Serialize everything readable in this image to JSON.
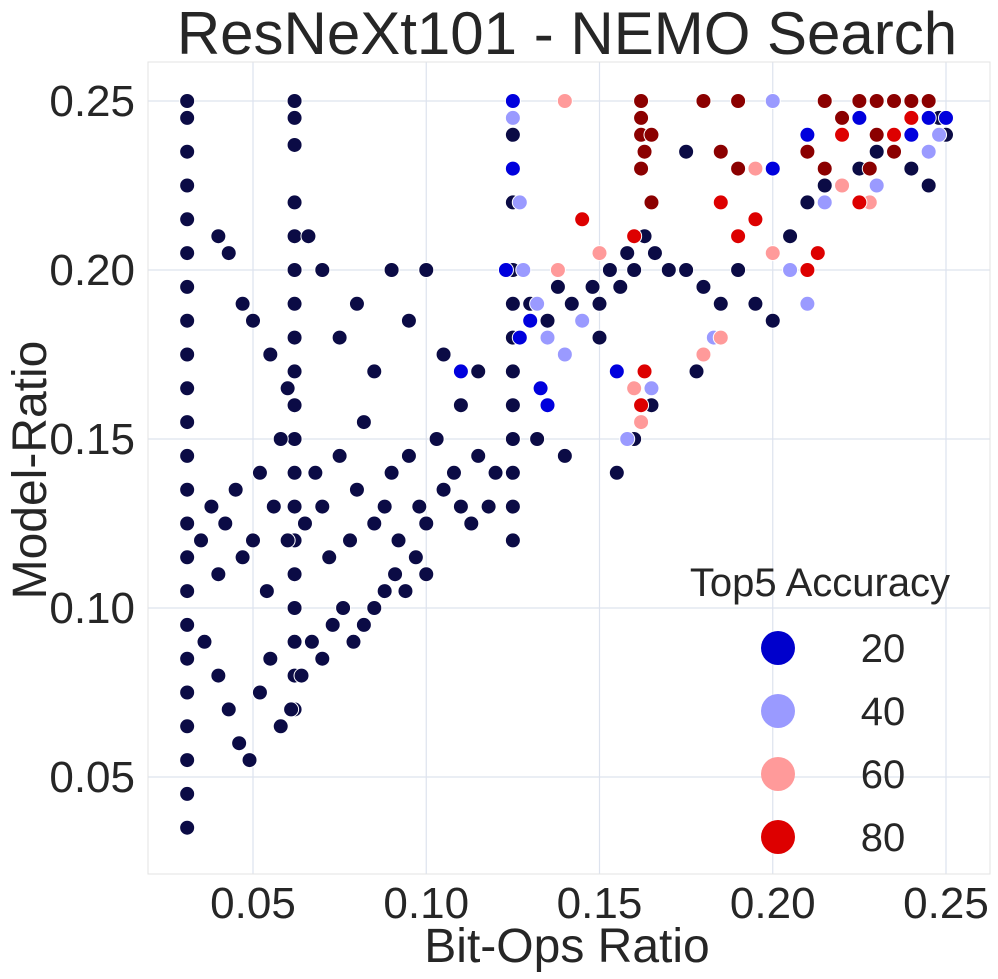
{
  "chart_data": {
    "type": "scatter",
    "title": "ResNeXt101 - NEMO Search",
    "xlabel": "Bit-Ops Ratio",
    "ylabel": "Model-Ratio",
    "xlim": [
      0.02,
      0.26
    ],
    "ylim": [
      0.02,
      0.26
    ],
    "xticks": [
      "0.05",
      "0.10",
      "0.15",
      "0.20",
      "0.25"
    ],
    "yticks": [
      "0.05",
      "0.10",
      "0.15",
      "0.20",
      "0.25"
    ],
    "grid": true,
    "legend": {
      "title": "Top5 Accuracy",
      "placement": "bottom-right",
      "entries": [
        {
          "label": "20",
          "color": "#0000cc"
        },
        {
          "label": "40",
          "color": "#9a9aff"
        },
        {
          "label": "60",
          "color": "#ff9a9a"
        },
        {
          "label": "80",
          "color": "#dd0000"
        }
      ]
    },
    "colormap": "seismic (dark navy = low accuracy, dark red = high accuracy)",
    "series": [
      {
        "color": "#0b0b45",
        "points": [
          [
            0.031,
            0.035
          ],
          [
            0.031,
            0.045
          ],
          [
            0.031,
            0.055
          ],
          [
            0.031,
            0.065
          ],
          [
            0.031,
            0.075
          ],
          [
            0.031,
            0.085
          ],
          [
            0.031,
            0.095
          ],
          [
            0.031,
            0.105
          ],
          [
            0.031,
            0.115
          ],
          [
            0.031,
            0.125
          ],
          [
            0.031,
            0.135
          ],
          [
            0.031,
            0.145
          ],
          [
            0.031,
            0.155
          ],
          [
            0.031,
            0.165
          ],
          [
            0.031,
            0.175
          ],
          [
            0.031,
            0.185
          ],
          [
            0.031,
            0.195
          ],
          [
            0.031,
            0.205
          ],
          [
            0.031,
            0.215
          ],
          [
            0.031,
            0.225
          ],
          [
            0.031,
            0.235
          ],
          [
            0.031,
            0.245
          ],
          [
            0.031,
            0.25
          ],
          [
            0.062,
            0.25
          ],
          [
            0.062,
            0.245
          ],
          [
            0.062,
            0.237
          ],
          [
            0.062,
            0.22
          ],
          [
            0.062,
            0.21
          ],
          [
            0.062,
            0.2
          ],
          [
            0.062,
            0.19
          ],
          [
            0.062,
            0.18
          ],
          [
            0.062,
            0.17
          ],
          [
            0.062,
            0.16
          ],
          [
            0.062,
            0.15
          ],
          [
            0.062,
            0.14
          ],
          [
            0.062,
            0.13
          ],
          [
            0.062,
            0.12
          ],
          [
            0.062,
            0.11
          ],
          [
            0.062,
            0.1
          ],
          [
            0.062,
            0.09
          ],
          [
            0.062,
            0.08
          ],
          [
            0.062,
            0.07
          ],
          [
            0.125,
            0.25
          ],
          [
            0.125,
            0.24
          ],
          [
            0.125,
            0.23
          ],
          [
            0.125,
            0.22
          ],
          [
            0.125,
            0.2
          ],
          [
            0.125,
            0.19
          ],
          [
            0.125,
            0.18
          ],
          [
            0.125,
            0.17
          ],
          [
            0.125,
            0.16
          ],
          [
            0.125,
            0.15
          ],
          [
            0.125,
            0.14
          ],
          [
            0.125,
            0.13
          ],
          [
            0.125,
            0.12
          ],
          [
            0.035,
            0.12
          ],
          [
            0.038,
            0.13
          ],
          [
            0.04,
            0.11
          ],
          [
            0.042,
            0.125
          ],
          [
            0.045,
            0.135
          ],
          [
            0.047,
            0.115
          ],
          [
            0.05,
            0.12
          ],
          [
            0.052,
            0.14
          ],
          [
            0.054,
            0.105
          ],
          [
            0.056,
            0.13
          ],
          [
            0.058,
            0.15
          ],
          [
            0.06,
            0.12
          ],
          [
            0.065,
            0.125
          ],
          [
            0.068,
            0.14
          ],
          [
            0.07,
            0.13
          ],
          [
            0.072,
            0.115
          ],
          [
            0.075,
            0.145
          ],
          [
            0.078,
            0.12
          ],
          [
            0.08,
            0.135
          ],
          [
            0.082,
            0.155
          ],
          [
            0.085,
            0.125
          ],
          [
            0.088,
            0.13
          ],
          [
            0.09,
            0.14
          ],
          [
            0.092,
            0.12
          ],
          [
            0.095,
            0.145
          ],
          [
            0.098,
            0.13
          ],
          [
            0.1,
            0.125
          ],
          [
            0.103,
            0.15
          ],
          [
            0.105,
            0.135
          ],
          [
            0.108,
            0.14
          ],
          [
            0.11,
            0.13
          ],
          [
            0.113,
            0.125
          ],
          [
            0.115,
            0.145
          ],
          [
            0.118,
            0.13
          ],
          [
            0.12,
            0.14
          ],
          [
            0.036,
            0.09
          ],
          [
            0.04,
            0.08
          ],
          [
            0.043,
            0.07
          ],
          [
            0.046,
            0.06
          ],
          [
            0.049,
            0.055
          ],
          [
            0.052,
            0.075
          ],
          [
            0.055,
            0.085
          ],
          [
            0.058,
            0.065
          ],
          [
            0.061,
            0.07
          ],
          [
            0.064,
            0.08
          ],
          [
            0.067,
            0.09
          ],
          [
            0.07,
            0.085
          ],
          [
            0.073,
            0.095
          ],
          [
            0.076,
            0.1
          ],
          [
            0.079,
            0.09
          ],
          [
            0.082,
            0.095
          ],
          [
            0.085,
            0.1
          ],
          [
            0.088,
            0.105
          ],
          [
            0.091,
            0.11
          ],
          [
            0.094,
            0.105
          ],
          [
            0.097,
            0.115
          ],
          [
            0.1,
            0.11
          ],
          [
            0.04,
            0.21
          ],
          [
            0.043,
            0.205
          ],
          [
            0.047,
            0.19
          ],
          [
            0.05,
            0.185
          ],
          [
            0.055,
            0.175
          ],
          [
            0.06,
            0.165
          ],
          [
            0.066,
            0.21
          ],
          [
            0.07,
            0.2
          ],
          [
            0.075,
            0.18
          ],
          [
            0.08,
            0.19
          ],
          [
            0.085,
            0.17
          ],
          [
            0.09,
            0.2
          ],
          [
            0.095,
            0.185
          ],
          [
            0.1,
            0.2
          ],
          [
            0.105,
            0.175
          ],
          [
            0.11,
            0.16
          ],
          [
            0.115,
            0.17
          ],
          [
            0.13,
            0.19
          ],
          [
            0.135,
            0.185
          ],
          [
            0.138,
            0.195
          ],
          [
            0.142,
            0.19
          ],
          [
            0.145,
            0.185
          ],
          [
            0.148,
            0.195
          ],
          [
            0.15,
            0.19
          ],
          [
            0.153,
            0.2
          ],
          [
            0.156,
            0.195
          ],
          [
            0.158,
            0.205
          ],
          [
            0.16,
            0.2
          ],
          [
            0.163,
            0.21
          ],
          [
            0.166,
            0.205
          ],
          [
            0.17,
            0.2
          ],
          [
            0.175,
            0.2
          ],
          [
            0.18,
            0.195
          ],
          [
            0.185,
            0.19
          ],
          [
            0.19,
            0.2
          ],
          [
            0.155,
            0.14
          ],
          [
            0.16,
            0.15
          ],
          [
            0.165,
            0.16
          ],
          [
            0.178,
            0.17
          ],
          [
            0.195,
            0.19
          ],
          [
            0.2,
            0.185
          ],
          [
            0.205,
            0.21
          ],
          [
            0.21,
            0.22
          ],
          [
            0.215,
            0.225
          ],
          [
            0.22,
            0.225
          ],
          [
            0.225,
            0.23
          ],
          [
            0.23,
            0.235
          ],
          [
            0.235,
            0.235
          ],
          [
            0.24,
            0.23
          ],
          [
            0.245,
            0.225
          ],
          [
            0.25,
            0.24
          ],
          [
            0.248,
            0.245
          ],
          [
            0.175,
            0.235
          ],
          [
            0.185,
            0.235
          ],
          [
            0.14,
            0.145
          ],
          [
            0.132,
            0.15
          ],
          [
            0.15,
            0.18
          ]
        ]
      },
      {
        "color": "#0000dd",
        "points": [
          [
            0.125,
            0.25
          ],
          [
            0.125,
            0.23
          ],
          [
            0.123,
            0.2
          ],
          [
            0.127,
            0.18
          ],
          [
            0.13,
            0.185
          ],
          [
            0.133,
            0.165
          ],
          [
            0.11,
            0.17
          ],
          [
            0.135,
            0.16
          ],
          [
            0.155,
            0.17
          ],
          [
            0.2,
            0.23
          ],
          [
            0.21,
            0.24
          ],
          [
            0.225,
            0.245
          ],
          [
            0.245,
            0.245
          ],
          [
            0.25,
            0.245
          ],
          [
            0.24,
            0.24
          ]
        ]
      },
      {
        "color": "#9a9aff",
        "points": [
          [
            0.125,
            0.245
          ],
          [
            0.127,
            0.22
          ],
          [
            0.128,
            0.2
          ],
          [
            0.132,
            0.19
          ],
          [
            0.135,
            0.18
          ],
          [
            0.14,
            0.175
          ],
          [
            0.145,
            0.185
          ],
          [
            0.158,
            0.15
          ],
          [
            0.165,
            0.165
          ],
          [
            0.183,
            0.18
          ],
          [
            0.2,
            0.25
          ],
          [
            0.205,
            0.2
          ],
          [
            0.21,
            0.19
          ],
          [
            0.215,
            0.22
          ],
          [
            0.23,
            0.225
          ],
          [
            0.245,
            0.235
          ],
          [
            0.248,
            0.24
          ]
        ]
      },
      {
        "color": "#ff9a9a",
        "points": [
          [
            0.14,
            0.25
          ],
          [
            0.138,
            0.2
          ],
          [
            0.15,
            0.205
          ],
          [
            0.16,
            0.165
          ],
          [
            0.162,
            0.155
          ],
          [
            0.18,
            0.175
          ],
          [
            0.185,
            0.18
          ],
          [
            0.195,
            0.23
          ],
          [
            0.2,
            0.205
          ],
          [
            0.22,
            0.225
          ],
          [
            0.228,
            0.22
          ],
          [
            0.24,
            0.25
          ]
        ]
      },
      {
        "color": "#dd0000",
        "points": [
          [
            0.145,
            0.215
          ],
          [
            0.16,
            0.21
          ],
          [
            0.163,
            0.17
          ],
          [
            0.162,
            0.16
          ],
          [
            0.185,
            0.22
          ],
          [
            0.19,
            0.21
          ],
          [
            0.195,
            0.215
          ],
          [
            0.21,
            0.2
          ],
          [
            0.213,
            0.205
          ],
          [
            0.22,
            0.24
          ],
          [
            0.225,
            0.22
          ],
          [
            0.23,
            0.24
          ],
          [
            0.235,
            0.24
          ],
          [
            0.24,
            0.245
          ]
        ]
      },
      {
        "color": "#8b0000",
        "points": [
          [
            0.162,
            0.25
          ],
          [
            0.162,
            0.245
          ],
          [
            0.162,
            0.24
          ],
          [
            0.163,
            0.235
          ],
          [
            0.162,
            0.23
          ],
          [
            0.165,
            0.22
          ],
          [
            0.165,
            0.24
          ],
          [
            0.18,
            0.25
          ],
          [
            0.19,
            0.25
          ],
          [
            0.185,
            0.235
          ],
          [
            0.19,
            0.23
          ],
          [
            0.215,
            0.25
          ],
          [
            0.22,
            0.245
          ],
          [
            0.225,
            0.25
          ],
          [
            0.23,
            0.25
          ],
          [
            0.235,
            0.25
          ],
          [
            0.24,
            0.25
          ],
          [
            0.245,
            0.25
          ],
          [
            0.23,
            0.24
          ],
          [
            0.235,
            0.235
          ],
          [
            0.228,
            0.23
          ],
          [
            0.21,
            0.235
          ],
          [
            0.215,
            0.23
          ]
        ]
      }
    ]
  }
}
